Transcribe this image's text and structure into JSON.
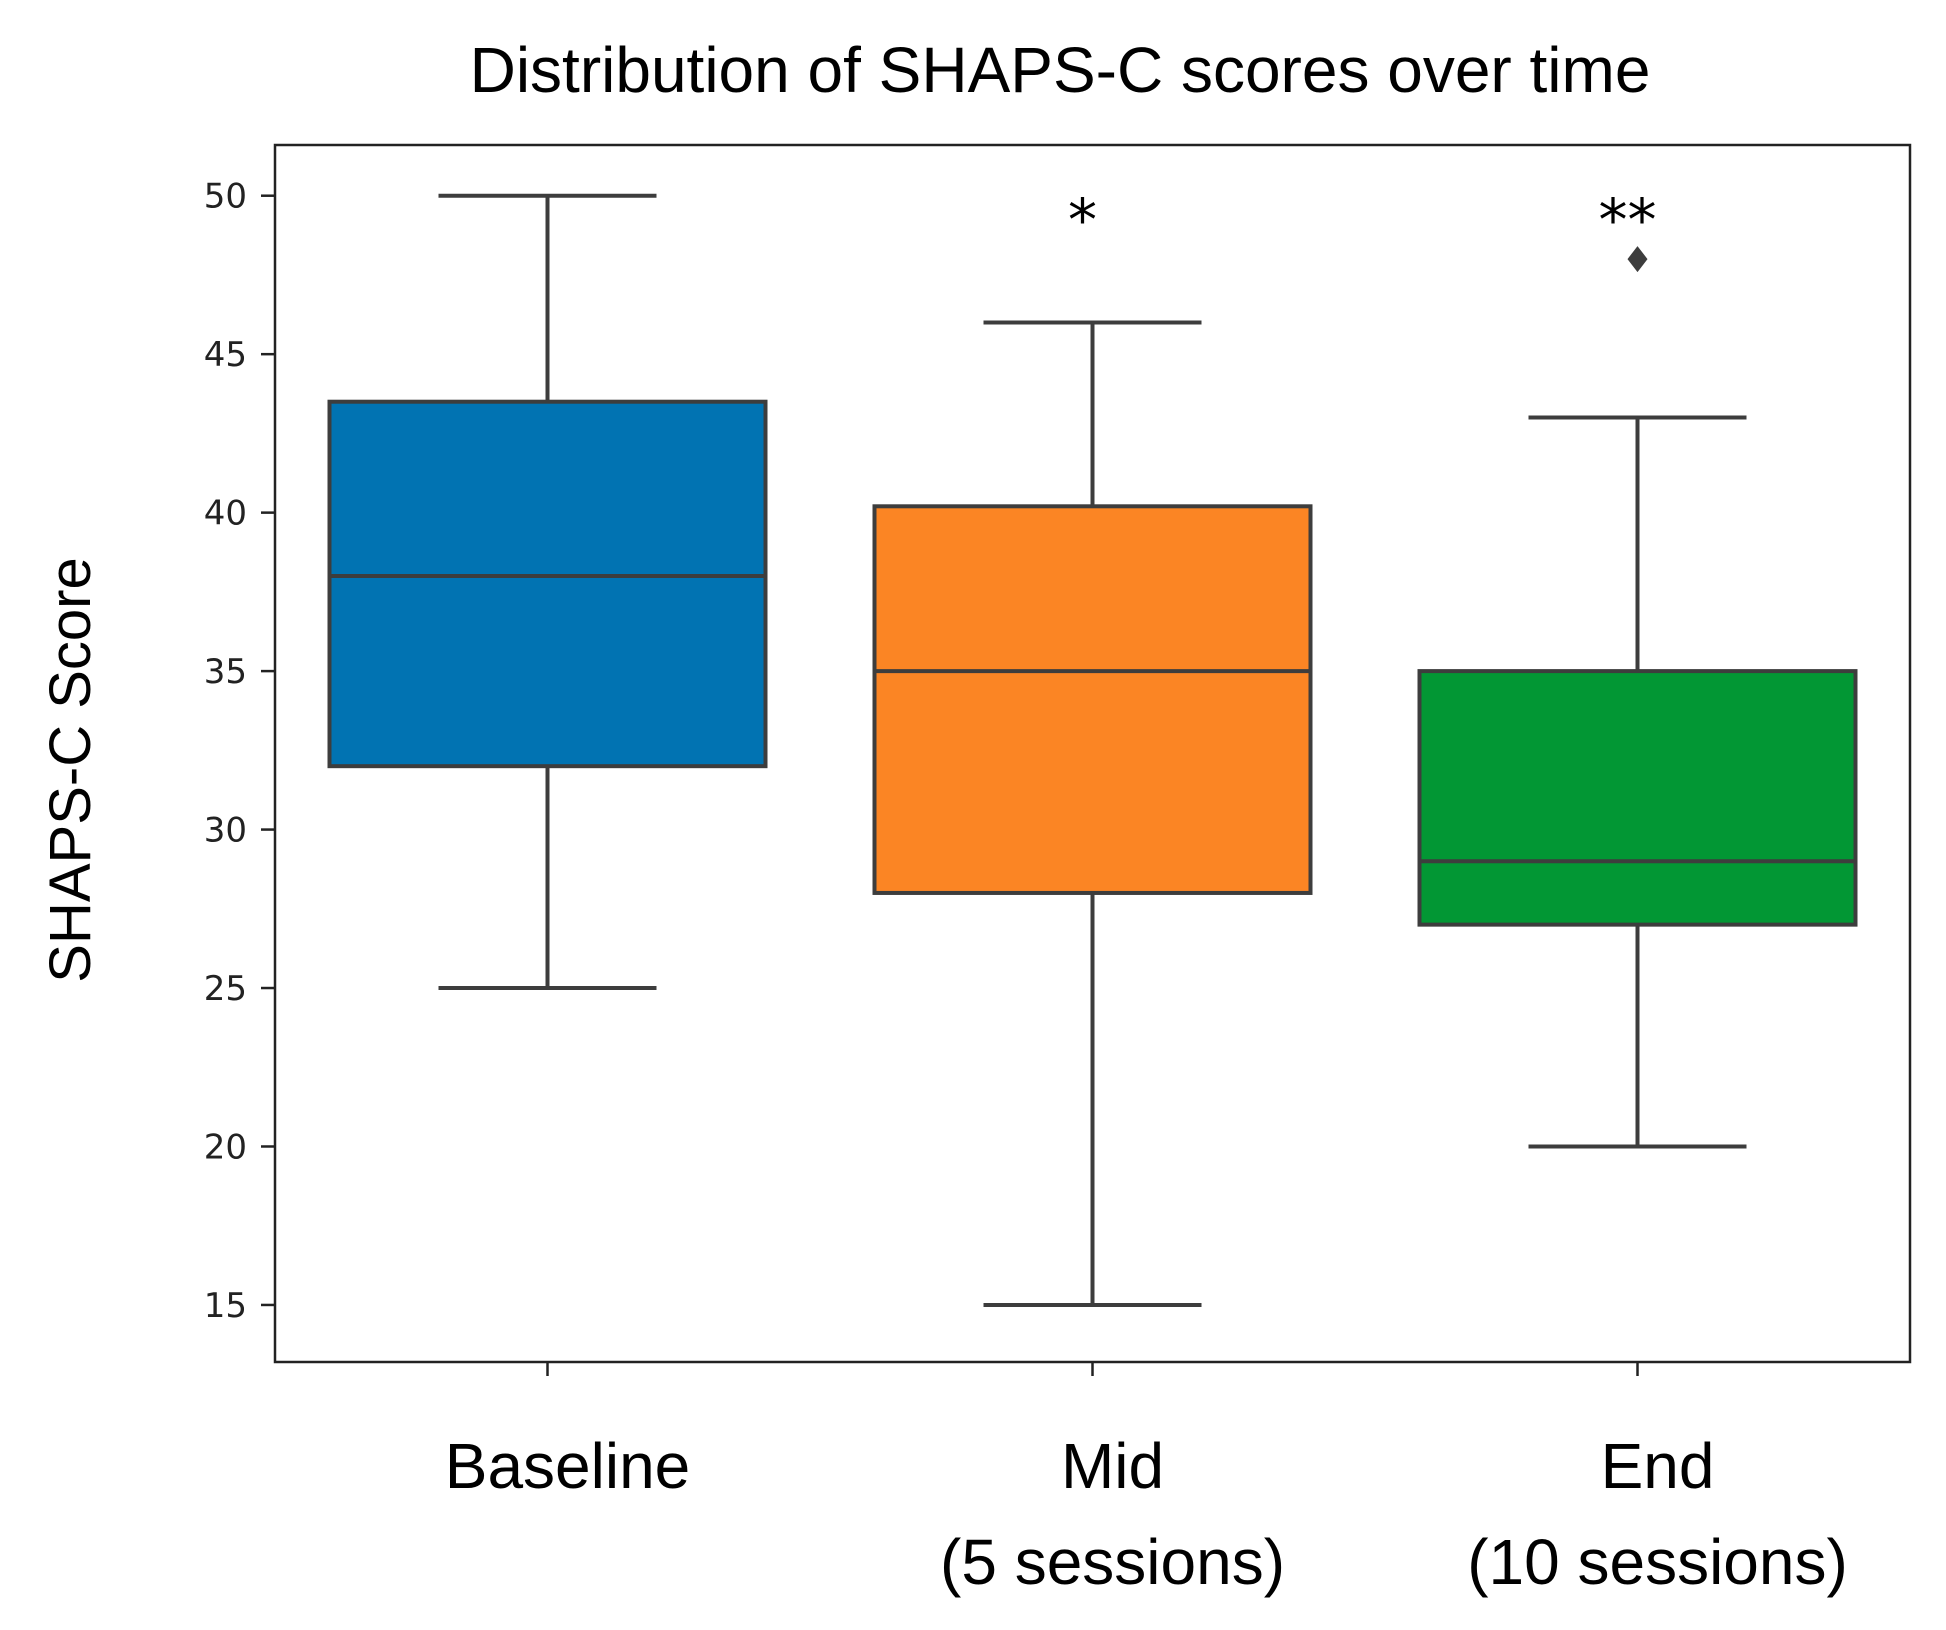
{
  "chart_data": {
    "type": "box",
    "title": "Distribution of SHAPS-C scores over time",
    "xlabel": "",
    "ylabel": "SHAPS-C Score",
    "ylim": [
      13.2,
      51.6
    ],
    "yticks": [
      15,
      20,
      25,
      30,
      35,
      40,
      45,
      50
    ],
    "grid": false,
    "categories": [
      {
        "label_lines": [
          "Baseline"
        ],
        "color": "#0173b2"
      },
      {
        "label_lines": [
          "Mid",
          "(5 sessions)"
        ],
        "color": "#fb8524"
      },
      {
        "label_lines": [
          "End",
          "(10 sessions)"
        ],
        "color": "#029734"
      }
    ],
    "boxes": [
      {
        "whisker_low": 25,
        "q1": 32,
        "median": 38,
        "q3": 43.5,
        "whisker_high": 50,
        "outliers": [],
        "annotation": ""
      },
      {
        "whisker_low": 15,
        "q1": 28,
        "median": 35,
        "q3": 40.2,
        "whisker_high": 46,
        "outliers": [],
        "annotation": "*"
      },
      {
        "whisker_low": 20,
        "q1": 27,
        "median": 29,
        "q3": 35,
        "whisker_high": 43,
        "outliers": [
          48
        ],
        "annotation": "**"
      }
    ],
    "line_color": "#3d3d3d"
  }
}
